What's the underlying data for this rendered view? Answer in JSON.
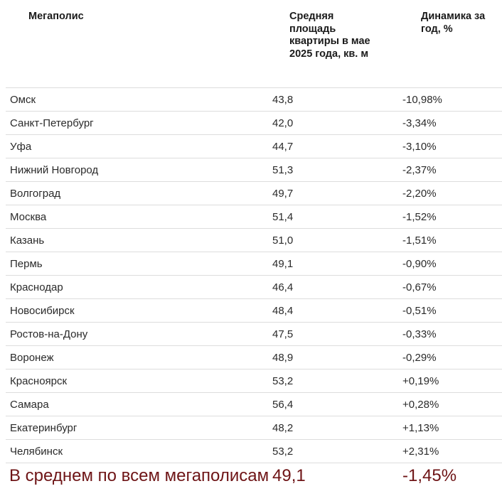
{
  "header": {
    "city": "Мегаполис",
    "area": "Средняя площадь квартиры в мае 2025 года, кв. м",
    "change": "Динамика за год, %"
  },
  "rows": [
    {
      "city": "Омск",
      "area": "43,8",
      "change": "-10,98%"
    },
    {
      "city": "Санкт-Петербург",
      "area": "42,0",
      "change": "-3,34%"
    },
    {
      "city": "Уфа",
      "area": "44,7",
      "change": "-3,10%"
    },
    {
      "city": "Нижний Новгород",
      "area": "51,3",
      "change": "-2,37%"
    },
    {
      "city": "Волгоград",
      "area": "49,7",
      "change": "-2,20%"
    },
    {
      "city": "Москва",
      "area": "51,4",
      "change": "-1,52%"
    },
    {
      "city": "Казань",
      "area": "51,0",
      "change": "-1,51%"
    },
    {
      "city": "Пермь",
      "area": "49,1",
      "change": "-0,90%"
    },
    {
      "city": "Краснодар",
      "area": "46,4",
      "change": "-0,67%"
    },
    {
      "city": "Новосибирск",
      "area": "48,4",
      "change": "-0,51%"
    },
    {
      "city": "Ростов-на-Дону",
      "area": "47,5",
      "change": "-0,33%"
    },
    {
      "city": "Воронеж",
      "area": "48,9",
      "change": "-0,29%"
    },
    {
      "city": "Красноярск",
      "area": "53,2",
      "change": "+0,19%"
    },
    {
      "city": "Самара",
      "area": "56,4",
      "change": "+0,28%"
    },
    {
      "city": "Екатеринбург",
      "area": "48,2",
      "change": "+1,13%"
    },
    {
      "city": "Челябинск",
      "area": "53,2",
      "change": "+2,31%"
    }
  ],
  "footer": {
    "city": "В среднем по всем мегаполисам",
    "area": "49,1",
    "change": "-1,45%"
  },
  "colors": {
    "footer_text": "#6e1416",
    "divider": "#dddddd"
  }
}
